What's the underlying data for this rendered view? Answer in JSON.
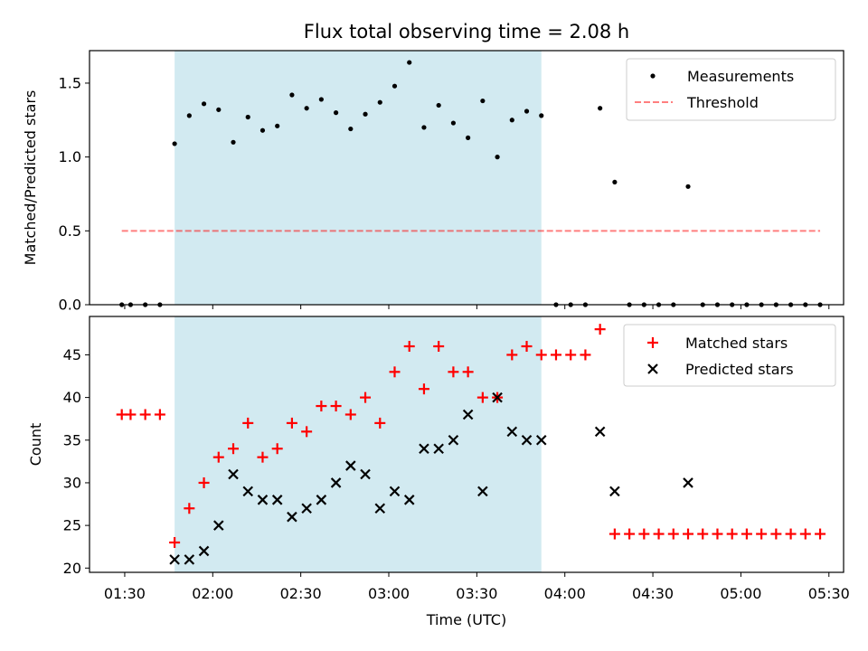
{
  "colors": {
    "shade": "#add8e6",
    "measurements": "#000000",
    "threshold": "#ff0000",
    "matched": "#ff0000",
    "predicted": "#000000"
  },
  "chart_data": [
    {
      "type": "scatter",
      "title": "Flux total observing time = 2.08 h",
      "xlabel": "",
      "ylabel": "Matched/Predicted stars",
      "ylim": [
        0,
        1.72
      ],
      "xlim": [
        "01:18",
        "05:35"
      ],
      "yticks": [
        "0.0",
        "0.5",
        "1.0",
        "1.5"
      ],
      "legend_position": "top-right",
      "shaded_interval": [
        "01:47",
        "03:52"
      ],
      "series": [
        {
          "name": "Measurements",
          "marker": "dot",
          "x": [
            "01:29",
            "01:32",
            "01:37",
            "01:42",
            "01:47",
            "01:52",
            "01:57",
            "02:02",
            "02:07",
            "02:12",
            "02:17",
            "02:22",
            "02:27",
            "02:32",
            "02:37",
            "02:42",
            "02:47",
            "02:52",
            "02:57",
            "03:02",
            "03:07",
            "03:12",
            "03:17",
            "03:22",
            "03:27",
            "03:32",
            "03:37",
            "03:42",
            "03:47",
            "03:52",
            "03:57",
            "04:02",
            "04:07",
            "04:12",
            "04:17",
            "04:22",
            "04:27",
            "04:32",
            "04:37",
            "04:42",
            "04:47",
            "04:52",
            "04:57",
            "05:02",
            "05:07",
            "05:12",
            "05:17",
            "05:22",
            "05:27"
          ],
          "y": [
            0,
            0,
            0,
            0,
            1.09,
            1.28,
            1.36,
            1.32,
            1.1,
            1.27,
            1.18,
            1.21,
            1.42,
            1.33,
            1.39,
            1.3,
            1.19,
            1.29,
            1.37,
            1.48,
            1.64,
            1.2,
            1.35,
            1.23,
            1.13,
            1.38,
            1.0,
            1.25,
            1.31,
            1.28,
            0,
            0,
            0,
            1.33,
            0.83,
            0,
            0,
            0,
            0,
            0.8,
            0,
            0,
            0,
            0,
            0,
            0,
            0,
            0,
            0
          ]
        },
        {
          "name": "Threshold",
          "style": "dashed",
          "x": [
            "01:29",
            "05:27"
          ],
          "y": [
            0.5,
            0.5
          ]
        }
      ]
    },
    {
      "type": "scatter",
      "title": "",
      "xlabel": "Time (UTC)",
      "ylabel": "Count",
      "ylim": [
        19.5,
        49.5
      ],
      "xlim": [
        "01:18",
        "05:35"
      ],
      "yticks": [
        "20",
        "25",
        "30",
        "35",
        "40",
        "45"
      ],
      "xticks": [
        "01:30",
        "02:00",
        "02:30",
        "03:00",
        "03:30",
        "04:00",
        "04:30",
        "05:00",
        "05:30"
      ],
      "legend_position": "top-right",
      "shaded_interval": [
        "01:47",
        "03:52"
      ],
      "series": [
        {
          "name": "Matched stars",
          "marker": "plus",
          "x": [
            "01:29",
            "01:32",
            "01:37",
            "01:42",
            "01:47",
            "01:52",
            "01:57",
            "02:02",
            "02:07",
            "02:12",
            "02:17",
            "02:22",
            "02:27",
            "02:32",
            "02:37",
            "02:42",
            "02:47",
            "02:52",
            "02:57",
            "03:02",
            "03:07",
            "03:12",
            "03:17",
            "03:22",
            "03:27",
            "03:32",
            "03:37",
            "03:42",
            "03:47",
            "03:52",
            "03:57",
            "04:02",
            "04:07",
            "04:12",
            "04:17",
            "04:22",
            "04:27",
            "04:32",
            "04:37",
            "04:42",
            "04:47",
            "04:52",
            "04:57",
            "05:02",
            "05:07",
            "05:12",
            "05:17",
            "05:22",
            "05:27"
          ],
          "y": [
            38,
            38,
            38,
            38,
            23,
            27,
            30,
            33,
            34,
            37,
            33,
            34,
            37,
            36,
            39,
            39,
            38,
            40,
            37,
            43,
            46,
            41,
            46,
            43,
            43,
            40,
            40,
            45,
            46,
            45,
            45,
            45,
            45,
            48,
            24,
            24,
            24,
            24,
            24,
            24,
            24,
            24,
            24,
            24,
            24,
            24,
            24,
            24,
            24
          ]
        },
        {
          "name": "Predicted stars",
          "marker": "x",
          "x": [
            "01:47",
            "01:52",
            "01:57",
            "02:02",
            "02:07",
            "02:12",
            "02:17",
            "02:22",
            "02:27",
            "02:32",
            "02:37",
            "02:42",
            "02:47",
            "02:52",
            "02:57",
            "03:02",
            "03:07",
            "03:12",
            "03:17",
            "03:22",
            "03:27",
            "03:32",
            "03:37",
            "03:42",
            "03:47",
            "03:52",
            "04:12",
            "04:17",
            "04:42"
          ],
          "y": [
            21,
            21,
            22,
            25,
            31,
            29,
            28,
            28,
            26,
            27,
            28,
            30,
            32,
            31,
            27,
            29,
            28,
            34,
            34,
            35,
            38,
            29,
            40,
            36,
            35,
            35,
            36,
            29,
            30
          ]
        }
      ]
    }
  ]
}
